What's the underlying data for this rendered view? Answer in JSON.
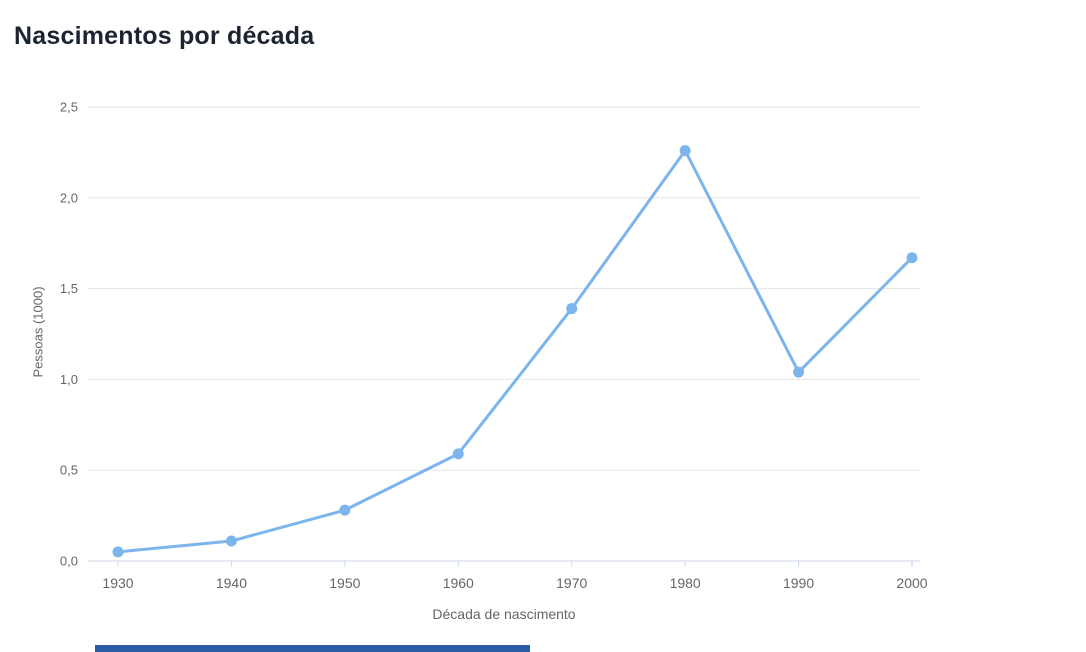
{
  "chart_data": {
    "type": "line",
    "title": "Nascimentos por década",
    "xlabel": "Década de nascimento",
    "ylabel": "Pessoas (1000)",
    "categories": [
      "1930",
      "1940",
      "1950",
      "1960",
      "1970",
      "1980",
      "1990",
      "2000"
    ],
    "values": [
      0.05,
      0.11,
      0.28,
      0.59,
      1.39,
      2.26,
      1.04,
      1.67
    ],
    "ylim": [
      0,
      2.5
    ],
    "ytick_step": 0.5,
    "ytick_labels": [
      "0,0",
      "0,5",
      "1,0",
      "1,5",
      "2,0",
      "2,5"
    ],
    "grid": true,
    "legend": "none",
    "colors": {
      "line": "#7cb5ec",
      "marker": "#7cb5ec",
      "grid": "#e6e6e6",
      "axis_line": "#ccd6eb",
      "tick": "#ccd6eb",
      "labels": "#666666",
      "title": "#1c2331"
    }
  },
  "bottom_bar": {
    "color": "#2b5ca8"
  }
}
